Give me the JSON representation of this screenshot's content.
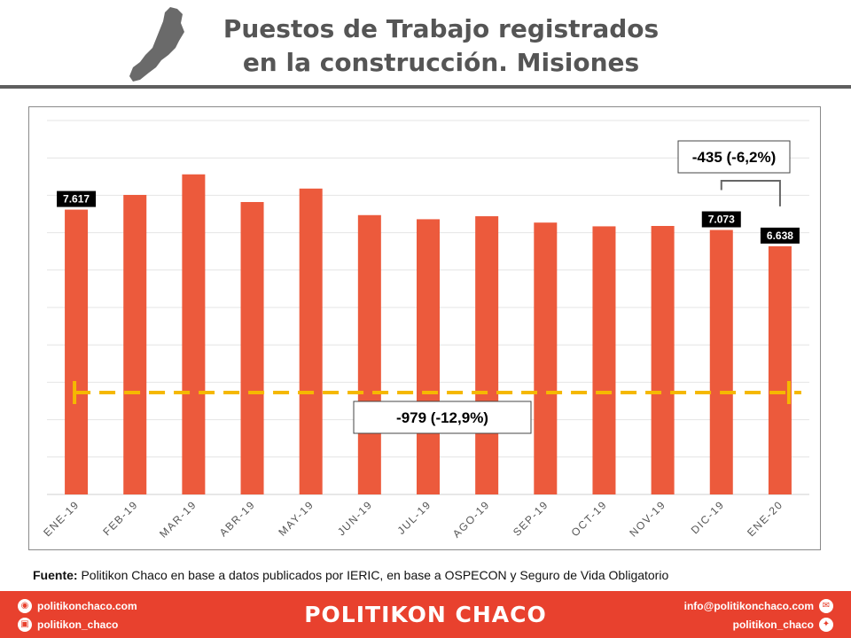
{
  "header": {
    "title_line1": "Puestos de Trabajo registrados",
    "title_line2": "en la construcción. Misiones"
  },
  "chart_data": {
    "type": "bar",
    "title": "Puestos de Trabajo registrados en la construcción. Misiones",
    "categories": [
      "ENE-19",
      "FEB-19",
      "MAR-19",
      "ABR-19",
      "MAY-19",
      "JUN-19",
      "JUL-19",
      "AGO-19",
      "SEP-19",
      "OCT-19",
      "NOV-19",
      "DIC-19",
      "ENE-20"
    ],
    "values": [
      7617,
      8010,
      8560,
      7820,
      8180,
      7470,
      7360,
      7440,
      7270,
      7170,
      7180,
      7073,
      6638
    ],
    "data_labels": [
      {
        "index": 0,
        "text": "7.617"
      },
      {
        "index": 11,
        "text": "7.073"
      },
      {
        "index": 12,
        "text": "6.638"
      }
    ],
    "xlabel": "",
    "ylabel": "",
    "ylim": [
      0,
      10000
    ],
    "y_ticks_shown": false,
    "grid": true,
    "bar_color": "#ec5a3c",
    "annotations": [
      {
        "text": "-435 (-6,2%)",
        "from_index": 11,
        "to_index": 12,
        "style": "bracket"
      },
      {
        "text": "-979 (-12,9%)",
        "from_index": 0,
        "to_index": 12,
        "style": "dashed-line",
        "color": "#f5b800"
      }
    ]
  },
  "source": {
    "label": "Fuente:",
    "text": " Politikon Chaco en base a datos publicados por IERIC,  en base a OSPECON y Seguro de Vida Obligatorio"
  },
  "footer": {
    "brand": "POLITIKON CHACO",
    "website": "politikonchaco.com",
    "instagram": "politikon_chaco",
    "email": "info@politikonchaco.com",
    "twitter": "politikon_chaco",
    "icons": [
      "globe-icon",
      "instagram-icon",
      "mail-icon",
      "twitter-icon"
    ]
  }
}
